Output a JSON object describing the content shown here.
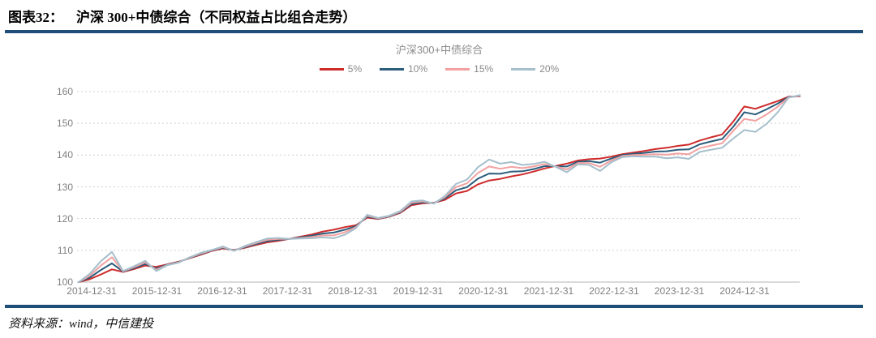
{
  "figure": {
    "label": "图表32：",
    "title": "沪深 300+中债综合（不同权益占比组合走势）",
    "source": "资料来源：wind，中信建投",
    "rule_color": "#1F4E79"
  },
  "chart_data": {
    "type": "line",
    "title": "沪深300+中债综合",
    "xlabel": "",
    "ylabel": "",
    "ylim": [
      100,
      160
    ],
    "y_ticks": [
      100,
      110,
      120,
      130,
      140,
      150,
      160
    ],
    "grid": "horizontal dashed",
    "legend_position": "top",
    "x_start": "2014-12",
    "x_step_months": 2,
    "x_total_months": 130,
    "x_tick_labels": [
      "2014-12-31",
      "2015-12-31",
      "2016-12-31",
      "2017-12-31",
      "2018-12-31",
      "2019-12-31",
      "2020-12-31",
      "2021-12-31",
      "2022-12-31",
      "2023-12-31",
      "2024-12-31"
    ],
    "x_tick_month_index": [
      0,
      12,
      24,
      36,
      48,
      60,
      72,
      84,
      96,
      108,
      120
    ],
    "series": [
      {
        "name": "5%",
        "color": "#CE2B2B",
        "values": [
          100,
          100.9,
          102.4,
          104.0,
          103.2,
          104.1,
          105.2,
          104.8,
          105.6,
          106.4,
          107.5,
          108.6,
          109.8,
          110.6,
          110.1,
          110.8,
          111.7,
          112.5,
          113.0,
          113.6,
          114.3,
          115.0,
          115.9,
          116.5,
          117.3,
          117.9,
          120.3,
          119.9,
          120.6,
          121.8,
          124.2,
          124.8,
          125.0,
          125.9,
          127.9,
          128.7,
          130.8,
          132.0,
          132.5,
          133.3,
          133.9,
          134.8,
          135.8,
          136.6,
          137.3,
          138.3,
          138.7,
          138.9,
          139.5,
          140.3,
          140.8,
          141.3,
          141.9,
          142.3,
          142.9,
          143.3,
          144.6,
          145.6,
          146.5,
          150.5,
          155.3,
          154.6,
          155.8,
          157.0,
          158.4,
          158.5
        ]
      },
      {
        "name": "10%",
        "color": "#2C5D7C",
        "values": [
          100,
          101.4,
          103.8,
          105.9,
          103.3,
          104.4,
          105.7,
          104.3,
          105.5,
          106.3,
          107.6,
          108.8,
          109.9,
          110.8,
          110.0,
          111.0,
          112.0,
          112.9,
          113.3,
          113.6,
          114.1,
          114.6,
          115.3,
          115.6,
          116.5,
          117.6,
          120.6,
          120.0,
          120.7,
          122.0,
          124.6,
          125.1,
          124.9,
          126.3,
          128.9,
          129.9,
          132.6,
          134.2,
          134.1,
          134.8,
          134.9,
          135.6,
          136.5,
          136.5,
          136.4,
          137.9,
          138.1,
          137.6,
          138.9,
          140.0,
          140.4,
          140.7,
          141.1,
          141.2,
          141.7,
          141.8,
          143.4,
          144.3,
          145.1,
          148.9,
          153.5,
          152.8,
          154.4,
          156.2,
          158.3,
          158.6
        ]
      },
      {
        "name": "15%",
        "color": "#F2A0A0",
        "values": [
          100,
          102.0,
          105.2,
          107.8,
          103.4,
          104.7,
          106.2,
          103.9,
          105.4,
          106.2,
          107.7,
          109.0,
          110.0,
          111.0,
          109.9,
          111.2,
          112.3,
          113.3,
          113.6,
          113.6,
          113.9,
          114.2,
          114.7,
          114.7,
          115.7,
          117.3,
          120.9,
          120.1,
          120.8,
          122.2,
          125.0,
          125.4,
          124.8,
          126.7,
          129.9,
          131.1,
          134.4,
          136.4,
          135.7,
          136.3,
          135.9,
          136.4,
          137.2,
          136.4,
          135.5,
          137.5,
          137.5,
          136.3,
          138.3,
          139.7,
          140.0,
          140.1,
          140.3,
          140.1,
          140.5,
          140.3,
          142.2,
          143.0,
          143.7,
          147.6,
          151.4,
          150.8,
          152.8,
          155.2,
          158.2,
          158.7
        ]
      },
      {
        "name": "20%",
        "color": "#A5BFCC",
        "values": [
          100,
          102.6,
          106.6,
          109.5,
          103.5,
          105.0,
          106.7,
          103.5,
          105.3,
          106.1,
          107.8,
          109.2,
          110.1,
          111.2,
          109.8,
          111.4,
          112.6,
          113.7,
          113.9,
          113.6,
          113.7,
          113.8,
          114.1,
          113.8,
          114.9,
          117.0,
          121.2,
          120.2,
          120.9,
          122.4,
          125.4,
          125.7,
          124.7,
          127.1,
          130.9,
          132.3,
          136.2,
          138.6,
          137.3,
          137.8,
          136.9,
          137.2,
          137.9,
          136.3,
          134.6,
          137.1,
          136.9,
          135.0,
          137.7,
          139.4,
          139.6,
          139.5,
          139.5,
          139.0,
          139.3,
          138.8,
          141.0,
          141.7,
          142.3,
          145.2,
          147.9,
          147.3,
          149.8,
          153.4,
          158.1,
          158.9
        ]
      }
    ],
    "axis_colors": {
      "tick_text": "#7f7f7f",
      "grid": "#cfcfcf",
      "axis_line": "#c4c4c4",
      "title_text": "#8b8b8b"
    }
  }
}
